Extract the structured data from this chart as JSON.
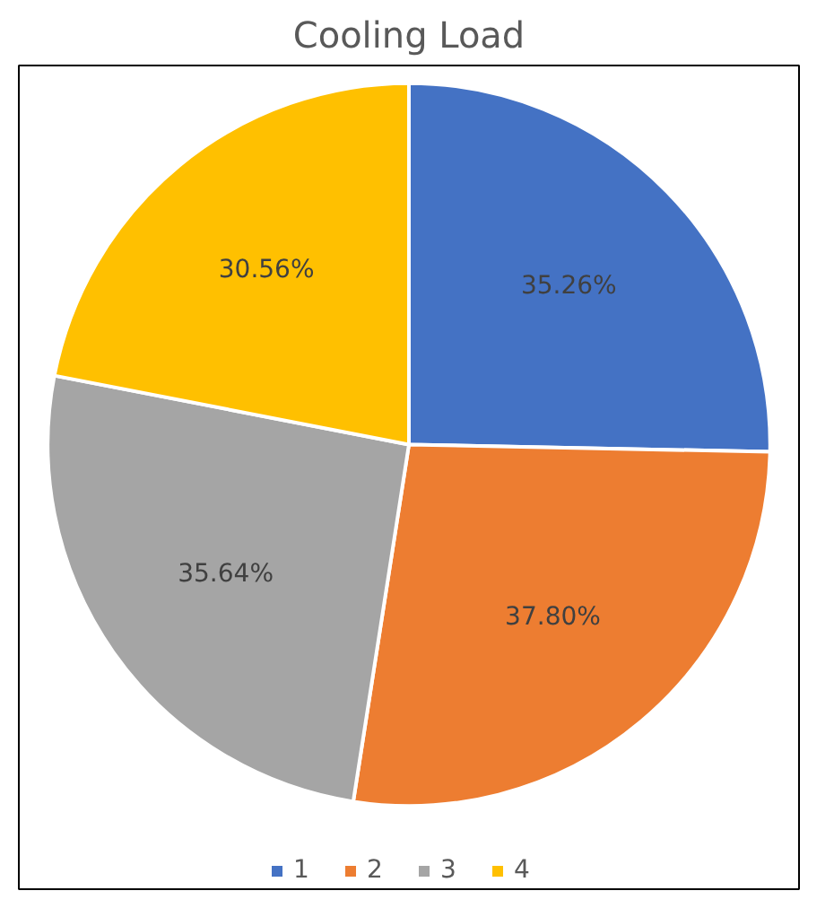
{
  "chart_data": {
    "type": "pie",
    "title": "Cooling Load",
    "categories": [
      "1",
      "2",
      "3",
      "4"
    ],
    "values": [
      35.26,
      37.8,
      35.64,
      30.56
    ],
    "colors": [
      "#4472c4",
      "#ed7d31",
      "#a5a5a5",
      "#ffc000"
    ],
    "value_labels": [
      "35.26%",
      "37.80%",
      "35.64%",
      "30.56%"
    ],
    "legend": "bottom"
  }
}
